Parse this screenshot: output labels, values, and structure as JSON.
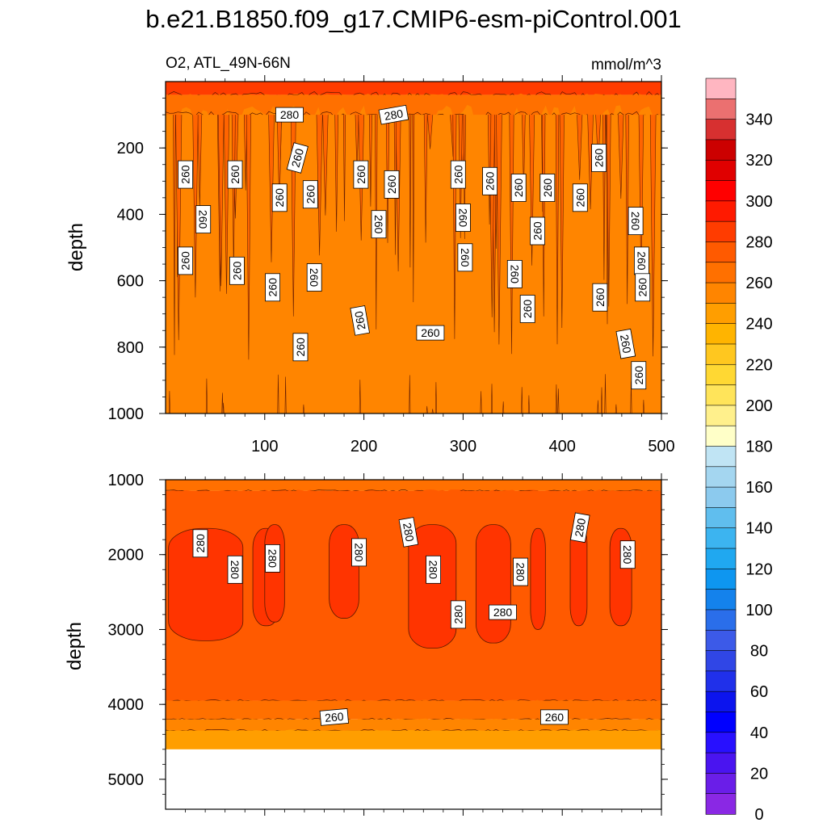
{
  "title": "b.e21.B1850.f09_g17.CMIP6-esm-piControl.001",
  "variable_label": "O2, ATL_49N-66N",
  "units_label": "mmol/m^3",
  "colors": {
    "background_level_top": "#ff7000",
    "background_level_deep": "#ff4d00",
    "surface_band": "#ff1500",
    "missing": "#ffffff"
  },
  "chart_data": [
    {
      "type": "heatmap",
      "panel": "upper",
      "title": "",
      "xlabel": "",
      "ylabel": "depth",
      "xlim": [
        0,
        500
      ],
      "ylim": [
        1000,
        0
      ],
      "y_inverted": true,
      "xticks": [
        100,
        200,
        300,
        400,
        500
      ],
      "yticks": [
        200,
        400,
        600,
        800,
        1000
      ],
      "field": [
        {
          "depth_range": [
            0,
            40
          ],
          "value_range": [
            280,
            300
          ]
        },
        {
          "depth_range": [
            40,
            100
          ],
          "value_range": [
            260,
            280
          ]
        },
        {
          "depth_range": [
            100,
            1000
          ],
          "value_range": [
            250,
            260
          ]
        }
      ],
      "contour_labels": [
        {
          "x": 125,
          "y": 100,
          "text": "280",
          "angle": 0
        },
        {
          "x": 230,
          "y": 100,
          "text": "280",
          "angle": -10
        },
        {
          "x": 20,
          "y": 280,
          "text": "260",
          "angle": -90
        },
        {
          "x": 70,
          "y": 280,
          "text": "260",
          "angle": -90
        },
        {
          "x": 133,
          "y": 230,
          "text": "260",
          "angle": -75
        },
        {
          "x": 197,
          "y": 280,
          "text": "260",
          "angle": -90
        },
        {
          "x": 228,
          "y": 310,
          "text": "260",
          "angle": -90
        },
        {
          "x": 295,
          "y": 280,
          "text": "260",
          "angle": -90
        },
        {
          "x": 327,
          "y": 300,
          "text": "260",
          "angle": -90
        },
        {
          "x": 356,
          "y": 320,
          "text": "260",
          "angle": -90
        },
        {
          "x": 385,
          "y": 320,
          "text": "260",
          "angle": -90
        },
        {
          "x": 437,
          "y": 230,
          "text": "260",
          "angle": -90
        },
        {
          "x": 38,
          "y": 415,
          "text": "260",
          "angle": 90
        },
        {
          "x": 115,
          "y": 350,
          "text": "260",
          "angle": -90
        },
        {
          "x": 146,
          "y": 340,
          "text": "260",
          "angle": -90
        },
        {
          "x": 215,
          "y": 430,
          "text": "260",
          "angle": 90
        },
        {
          "x": 300,
          "y": 410,
          "text": "260",
          "angle": 90
        },
        {
          "x": 418,
          "y": 350,
          "text": "260",
          "angle": -90
        },
        {
          "x": 375,
          "y": 450,
          "text": "260",
          "angle": -90
        },
        {
          "x": 474,
          "y": 420,
          "text": "260",
          "angle": 90
        },
        {
          "x": 20,
          "y": 540,
          "text": "260",
          "angle": -90
        },
        {
          "x": 72,
          "y": 570,
          "text": "260",
          "angle": -90
        },
        {
          "x": 108,
          "y": 620,
          "text": "260",
          "angle": -90
        },
        {
          "x": 150,
          "y": 590,
          "text": "260",
          "angle": 90
        },
        {
          "x": 302,
          "y": 530,
          "text": "260",
          "angle": 90
        },
        {
          "x": 352,
          "y": 580,
          "text": "260",
          "angle": 90
        },
        {
          "x": 480,
          "y": 540,
          "text": "260",
          "angle": 90
        },
        {
          "x": 481,
          "y": 620,
          "text": "260",
          "angle": -90
        },
        {
          "x": 365,
          "y": 685,
          "text": "260",
          "angle": -90
        },
        {
          "x": 438,
          "y": 650,
          "text": "260",
          "angle": -90
        },
        {
          "x": 196,
          "y": 720,
          "text": "260",
          "angle": -100
        },
        {
          "x": 267,
          "y": 757,
          "text": "260",
          "angle": 0
        },
        {
          "x": 136,
          "y": 800,
          "text": "260",
          "angle": -90
        },
        {
          "x": 464,
          "y": 790,
          "text": "260",
          "angle": 80
        },
        {
          "x": 477,
          "y": 885,
          "text": "260",
          "angle": -90
        }
      ]
    },
    {
      "type": "heatmap",
      "panel": "lower",
      "title": "",
      "xlabel": "",
      "ylabel": "depth",
      "xlim": [
        0,
        500
      ],
      "ylim": [
        5400,
        1000
      ],
      "y_inverted": true,
      "xticks": [
        100,
        200,
        300,
        400,
        500
      ],
      "yticks": [
        1000,
        2000,
        3000,
        4000,
        5000
      ],
      "bottom_of_data_depth": 4600,
      "field": [
        {
          "depth_range": [
            1000,
            1150
          ],
          "value_range": [
            260,
            270
          ]
        },
        {
          "depth_range": [
            1150,
            3950
          ],
          "value_range": [
            270,
            280
          ]
        },
        {
          "depth_range": [
            3950,
            4200
          ],
          "value_range": [
            260,
            270
          ]
        },
        {
          "depth_range": [
            4200,
            4350
          ],
          "value_range": [
            250,
            260
          ]
        },
        {
          "depth_range": [
            4350,
            4600
          ],
          "value_range": [
            240,
            250
          ]
        }
      ],
      "high_patches_280": [
        {
          "x": [
            3,
            78
          ],
          "depth": [
            1650,
            3150
          ]
        },
        {
          "x": [
            88,
            115
          ],
          "depth": [
            1650,
            2950
          ]
        },
        {
          "x": [
            100,
            120
          ],
          "depth": [
            1600,
            2900
          ]
        },
        {
          "x": [
            165,
            195
          ],
          "depth": [
            1600,
            2850
          ]
        },
        {
          "x": [
            245,
            293
          ],
          "depth": [
            1600,
            3250
          ]
        },
        {
          "x": [
            313,
            348
          ],
          "depth": [
            1600,
            3180
          ]
        },
        {
          "x": [
            368,
            383
          ],
          "depth": [
            1650,
            3000
          ]
        },
        {
          "x": [
            408,
            425
          ],
          "depth": [
            1600,
            2950
          ]
        },
        {
          "x": [
            448,
            470
          ],
          "depth": [
            1650,
            2950
          ]
        }
      ],
      "contour_labels": [
        {
          "x": 35,
          "y": 1850,
          "text": "280",
          "angle": -90
        },
        {
          "x": 70,
          "y": 2200,
          "text": "280",
          "angle": 90
        },
        {
          "x": 108,
          "y": 2050,
          "text": "280",
          "angle": 90
        },
        {
          "x": 195,
          "y": 1970,
          "text": "280",
          "angle": 90
        },
        {
          "x": 245,
          "y": 1700,
          "text": "280",
          "angle": 80
        },
        {
          "x": 270,
          "y": 2200,
          "text": "280",
          "angle": 90
        },
        {
          "x": 295,
          "y": 2800,
          "text": "280",
          "angle": -90
        },
        {
          "x": 340,
          "y": 2770,
          "text": "280",
          "angle": 0
        },
        {
          "x": 358,
          "y": 2230,
          "text": "280",
          "angle": 90
        },
        {
          "x": 418,
          "y": 1640,
          "text": "280",
          "angle": -80
        },
        {
          "x": 466,
          "y": 2000,
          "text": "280",
          "angle": 90
        },
        {
          "x": 170,
          "y": 4170,
          "text": "260",
          "angle": -5
        },
        {
          "x": 392,
          "y": 4170,
          "text": "260",
          "angle": 0
        }
      ]
    }
  ],
  "colorbar": {
    "labels": [
      "340",
      "320",
      "300",
      "280",
      "260",
      "240",
      "220",
      "200",
      "180",
      "160",
      "140",
      "120",
      "100",
      "80",
      "60",
      "40",
      "20",
      "0"
    ],
    "colors_top_to_bottom": [
      "#ffb6c1",
      "#eb7070",
      "#d73030",
      "#cc0000",
      "#e00000",
      "#ff0000",
      "#ff1a00",
      "#ff3c00",
      "#ff5a00",
      "#ff7000",
      "#ff8500",
      "#ff9e00",
      "#ffb400",
      "#ffc71f",
      "#ffd833",
      "#ffe45a",
      "#fff08c",
      "#ffffc8",
      "#c0e4f4",
      "#a4d6f0",
      "#8ccaee",
      "#60beee",
      "#3cb4f0",
      "#20a8f0",
      "#0e96f0",
      "#1482ec",
      "#2a6eea",
      "#3c5ae8",
      "#3046e6",
      "#2030ea",
      "#0c14ee",
      "#0000ff",
      "#2810ff",
      "#4a14f0",
      "#6a1ee8",
      "#8a28e4"
    ]
  }
}
